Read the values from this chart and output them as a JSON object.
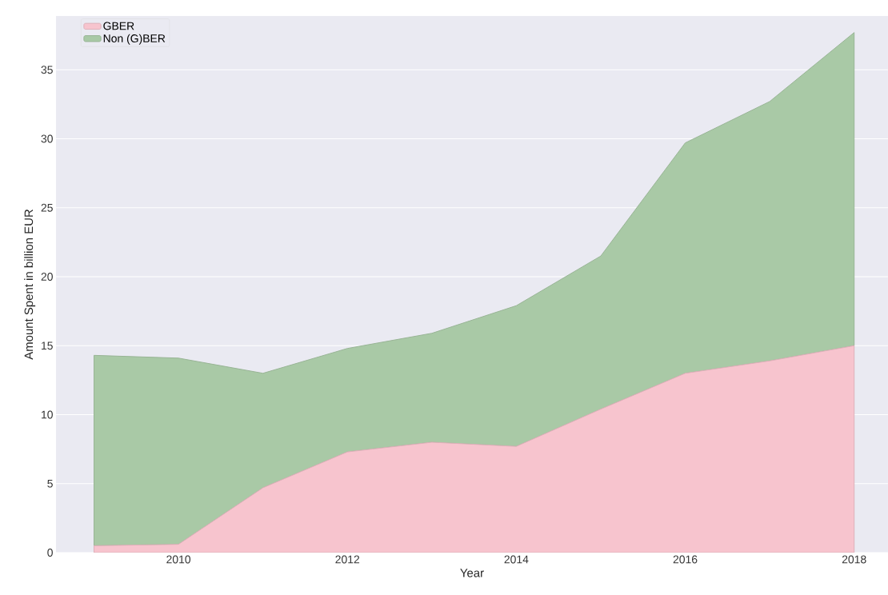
{
  "chart_data": {
    "type": "area",
    "stacked": true,
    "xlabel": "Year",
    "ylabel": "Amount Spent in billion EUR",
    "x": [
      2009,
      2010,
      2011,
      2012,
      2013,
      2014,
      2015,
      2016,
      2017,
      2018
    ],
    "series": [
      {
        "name": "GBER",
        "color": "#f7c4ce",
        "values": [
          0.5,
          0.6,
          4.7,
          7.3,
          8.0,
          7.7,
          10.4,
          13.0,
          13.9,
          15.0
        ]
      },
      {
        "name": "Non (G)BER",
        "color": "#a9c9a6",
        "values": [
          13.8,
          13.5,
          8.3,
          7.5,
          7.9,
          10.2,
          11.1,
          16.7,
          18.8,
          22.7
        ]
      }
    ],
    "xlim": [
      2008.55,
      2018.4
    ],
    "ylim": [
      0,
      38.9
    ],
    "xticks": [
      2010,
      2012,
      2014,
      2016,
      2018
    ],
    "yticks": [
      0,
      5,
      10,
      15,
      20,
      25,
      30,
      35
    ],
    "grid": "y",
    "legend": "top left"
  }
}
